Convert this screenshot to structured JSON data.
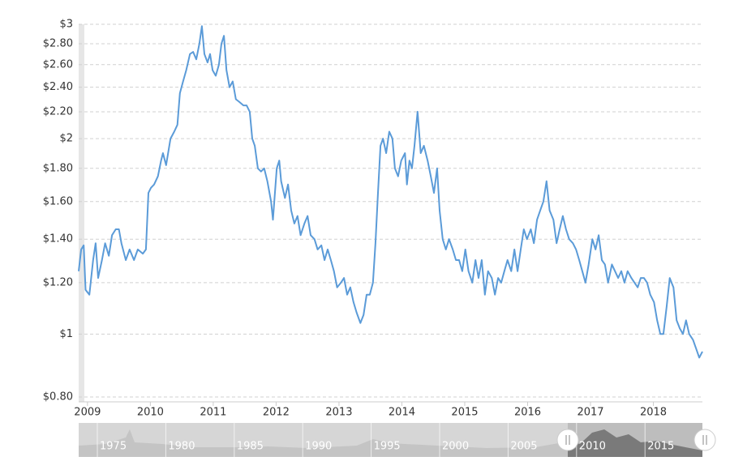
{
  "chart_data": {
    "type": "line",
    "ylog": true,
    "grid": true,
    "xlim": [
      2008.86,
      2018.78
    ],
    "xticks": [
      2009,
      2010,
      2011,
      2012,
      2013,
      2014,
      2015,
      2016,
      2017,
      2018
    ],
    "ylim": [
      0.8,
      3
    ],
    "yticks": [
      {
        "value": 0.8,
        "label": "$0.80"
      },
      {
        "value": 1,
        "label": "$1"
      },
      {
        "value": 1.2,
        "label": "$1.20"
      },
      {
        "value": 1.4,
        "label": "$1.40"
      },
      {
        "value": 1.6,
        "label": "$1.60"
      },
      {
        "value": 1.8,
        "label": "$1.80"
      },
      {
        "value": 2,
        "label": "$2"
      },
      {
        "value": 2.2,
        "label": "$2.20"
      },
      {
        "value": 2.4,
        "label": "$2.40"
      },
      {
        "value": 2.6,
        "label": "$2.60"
      },
      {
        "value": 2.8,
        "label": "$2.80"
      },
      {
        "value": 3,
        "label": "$3"
      }
    ],
    "x": [
      2008.86,
      2008.9,
      2008.94,
      2008.97,
      2009.03,
      2009.09,
      2009.13,
      2009.17,
      2009.23,
      2009.28,
      2009.34,
      2009.39,
      2009.45,
      2009.5,
      2009.54,
      2009.61,
      2009.67,
      2009.74,
      2009.8,
      2009.88,
      2009.93,
      2009.97,
      2010.01,
      2010.06,
      2010.12,
      2010.17,
      2010.2,
      2010.25,
      2010.32,
      2010.38,
      2010.43,
      2010.47,
      2010.52,
      2010.57,
      2010.63,
      2010.68,
      2010.73,
      2010.78,
      2010.82,
      2010.86,
      2010.91,
      2010.95,
      2010.99,
      2011.04,
      2011.09,
      2011.13,
      2011.17,
      2011.21,
      2011.26,
      2011.31,
      2011.36,
      2011.41,
      2011.48,
      2011.53,
      2011.58,
      2011.62,
      2011.66,
      2011.71,
      2011.76,
      2011.81,
      2011.86,
      2011.92,
      2011.95,
      2012.01,
      2012.05,
      2012.08,
      2012.14,
      2012.19,
      2012.24,
      2012.29,
      2012.34,
      2012.39,
      2012.45,
      2012.5,
      2012.55,
      2012.61,
      2012.66,
      2012.72,
      2012.77,
      2012.82,
      2012.87,
      2012.92,
      2012.97,
      2013.03,
      2013.08,
      2013.13,
      2013.18,
      2013.23,
      2013.28,
      2013.34,
      2013.39,
      2013.44,
      2013.49,
      2013.54,
      2013.58,
      2013.62,
      2013.66,
      2013.7,
      2013.75,
      2013.8,
      2013.85,
      2013.89,
      2013.94,
      2013.99,
      2014.05,
      2014.08,
      2014.12,
      2014.16,
      2014.2,
      2014.25,
      2014.3,
      2014.35,
      2014.41,
      2014.46,
      2014.51,
      2014.56,
      2014.6,
      2014.65,
      2014.7,
      2014.75,
      2014.81,
      2014.86,
      2014.91,
      2014.96,
      2015.01,
      2015.06,
      2015.12,
      2015.17,
      2015.22,
      2015.27,
      2015.32,
      2015.37,
      2015.43,
      2015.48,
      2015.53,
      2015.58,
      2015.63,
      2015.68,
      2015.74,
      2015.79,
      2015.84,
      2015.89,
      2015.94,
      2015.99,
      2016.05,
      2016.1,
      2016.15,
      2016.2,
      2016.25,
      2016.3,
      2016.35,
      2016.41,
      2016.46,
      2016.51,
      2016.56,
      2016.61,
      2016.66,
      2016.72,
      2016.77,
      2016.82,
      2016.87,
      2016.92,
      2016.97,
      2017.03,
      2017.08,
      2017.13,
      2017.18,
      2017.23,
      2017.28,
      2017.34,
      2017.39,
      2017.44,
      2017.49,
      2017.54,
      2017.59,
      2017.65,
      2017.7,
      2017.75,
      2017.8,
      2017.85,
      2017.9,
      2017.95,
      2018.01,
      2018.06,
      2018.11,
      2018.16,
      2018.21,
      2018.26,
      2018.32,
      2018.37,
      2018.42,
      2018.47,
      2018.52,
      2018.57,
      2018.63,
      2018.68,
      2018.73,
      2018.78
    ],
    "series": [
      {
        "color": "#5b9bd8",
        "values": [
          1.25,
          1.35,
          1.37,
          1.17,
          1.15,
          1.3,
          1.38,
          1.22,
          1.3,
          1.38,
          1.32,
          1.42,
          1.45,
          1.45,
          1.38,
          1.3,
          1.35,
          1.3,
          1.35,
          1.33,
          1.35,
          1.65,
          1.68,
          1.7,
          1.75,
          1.85,
          1.9,
          1.82,
          2.0,
          2.05,
          2.1,
          2.35,
          2.45,
          2.55,
          2.7,
          2.72,
          2.65,
          2.8,
          2.98,
          2.7,
          2.62,
          2.7,
          2.55,
          2.5,
          2.6,
          2.8,
          2.88,
          2.55,
          2.4,
          2.45,
          2.3,
          2.28,
          2.25,
          2.25,
          2.2,
          2.0,
          1.95,
          1.8,
          1.78,
          1.8,
          1.72,
          1.6,
          1.5,
          1.8,
          1.85,
          1.72,
          1.62,
          1.7,
          1.55,
          1.48,
          1.52,
          1.42,
          1.48,
          1.52,
          1.42,
          1.4,
          1.35,
          1.37,
          1.3,
          1.35,
          1.3,
          1.25,
          1.18,
          1.2,
          1.22,
          1.15,
          1.18,
          1.12,
          1.08,
          1.04,
          1.07,
          1.15,
          1.15,
          1.2,
          1.38,
          1.65,
          1.95,
          2.0,
          1.9,
          2.05,
          2.0,
          1.8,
          1.75,
          1.85,
          1.9,
          1.7,
          1.85,
          1.8,
          1.95,
          2.2,
          1.9,
          1.95,
          1.85,
          1.75,
          1.65,
          1.8,
          1.55,
          1.4,
          1.35,
          1.4,
          1.35,
          1.3,
          1.3,
          1.25,
          1.35,
          1.25,
          1.2,
          1.3,
          1.22,
          1.3,
          1.15,
          1.25,
          1.22,
          1.15,
          1.22,
          1.2,
          1.25,
          1.3,
          1.25,
          1.35,
          1.25,
          1.35,
          1.45,
          1.4,
          1.45,
          1.38,
          1.5,
          1.55,
          1.6,
          1.72,
          1.55,
          1.5,
          1.38,
          1.45,
          1.52,
          1.45,
          1.4,
          1.38,
          1.35,
          1.3,
          1.25,
          1.2,
          1.28,
          1.4,
          1.35,
          1.42,
          1.3,
          1.28,
          1.2,
          1.28,
          1.25,
          1.22,
          1.25,
          1.2,
          1.25,
          1.22,
          1.2,
          1.18,
          1.22,
          1.22,
          1.2,
          1.15,
          1.12,
          1.05,
          1.0,
          1.0,
          1.1,
          1.22,
          1.18,
          1.05,
          1.02,
          1.0,
          1.05,
          1.0,
          0.98,
          0.95,
          0.92,
          0.94
        ]
      }
    ],
    "navigator_labels": [
      "1975",
      "1980",
      "1985",
      "1990",
      "1995",
      "2000",
      "2005",
      "2010",
      "2015"
    ]
  }
}
